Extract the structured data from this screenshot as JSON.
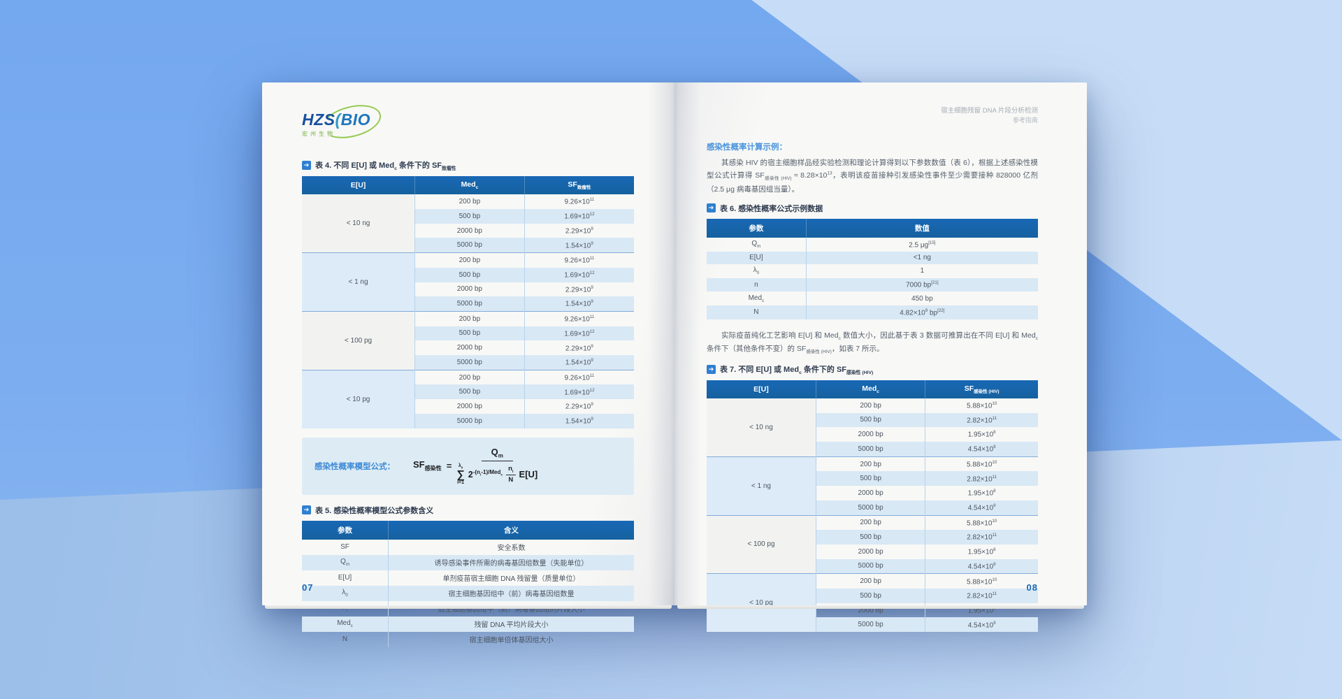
{
  "colors": {
    "base_blue": "#7cadf0",
    "wedge_blue": "#c7ddf7",
    "band_blue": "#b3cdf0",
    "header_blue": "#1968b5",
    "accent_blue": "#4a94dc",
    "row_blue": "#d8e8f5"
  },
  "left": {
    "logo": {
      "hzs": "HZS",
      "bracket": "(",
      "bio": "BIO",
      "subtext": "宏州生物"
    },
    "tag_glyph": "➔",
    "table4_title": "表 4. 不同 E[U] 或 Med_{c} 条件下的 SF_{致瘤性}",
    "table4": {
      "headers": [
        "E[U]",
        "Med_{c}",
        "SF_{致瘤性}"
      ],
      "widths": [
        "34%",
        "33%",
        "33%"
      ],
      "groups": [
        {
          "label": "< 10 ng",
          "rows": [
            [
              "200 bp",
              "9.26×10^{11}"
            ],
            [
              "500 bp",
              "1.69×10^{12}"
            ],
            [
              "2000 bp",
              "2.29×10^{9}"
            ],
            [
              "5000 bp",
              "1.54×10^{9}"
            ]
          ]
        },
        {
          "label": "< 1 ng",
          "rows": [
            [
              "200 bp",
              "9.26×10^{11}"
            ],
            [
              "500 bp",
              "1.69×10^{12}"
            ],
            [
              "2000 bp",
              "2.29×10^{9}"
            ],
            [
              "5000 bp",
              "1.54×10^{9}"
            ]
          ]
        },
        {
          "label": "< 100 pg",
          "rows": [
            [
              "200 bp",
              "9.26×10^{11}"
            ],
            [
              "500 bp",
              "1.69×10^{12}"
            ],
            [
              "2000 bp",
              "2.29×10^{9}"
            ],
            [
              "5000 bp",
              "1.54×10^{9}"
            ]
          ]
        },
        {
          "label": "< 10 pg",
          "rows": [
            [
              "200 bp",
              "9.26×10^{11}"
            ],
            [
              "500 bp",
              "1.69×10^{12}"
            ],
            [
              "2000 bp",
              "2.29×10^{9}"
            ],
            [
              "5000 bp",
              "1.54×10^{9}"
            ]
          ]
        }
      ]
    },
    "formula": {
      "label": "感染性概率模型公式：",
      "lhs": "SF_{感染性}",
      "equals": "=",
      "numerator": "Q_{m}",
      "sum_top": "λ_{0}",
      "sigma": "∑",
      "sum_bottom": "i=1",
      "pow_base": "2",
      "pow_exp": "-(n_{i}-1)/Med_{c}",
      "frac_num": "n_{i}",
      "frac_den": "N",
      "tail": "E[U]"
    },
    "table5_title": "表 5. 感染性概率模型公式参数含义",
    "table5": {
      "headers": [
        "参数",
        "含义"
      ],
      "widths": [
        "26%",
        "74%"
      ],
      "rows": [
        [
          "SF",
          "安全系数"
        ],
        [
          "Q_{m}",
          "诱导感染事件所需的病毒基因组数量（失能单位）"
        ],
        [
          "E[U]",
          "单剂疫苗宿主细胞 DNA 残留量（质量单位）"
        ],
        [
          "λ_{0}",
          "宿主细胞基因组中（前）病毒基因组数量"
        ],
        [
          "n_{i}",
          "宿主细胞基因组中（前）病毒基因组的片段大小"
        ],
        [
          "Med_{c}",
          "残留 DNA 平均片段大小"
        ],
        [
          "N",
          "宿主细胞单倍体基因组大小"
        ]
      ]
    },
    "page_number": "07"
  },
  "right": {
    "header_line1": "宿主细胞残留 DNA 片段分析检测",
    "header_line2": "参考指南",
    "section_heading": "感染性概率计算示例：",
    "para1": "其感染 HIV 的宿主细胞样品经实验检测和理论计算得到以下参数数值（表 6），根据上述感染性模型公式计算得 SF_{感染性 (HIV)} ≈ 8.28×10^{13}，表明该疫苗接种引发感染性事件至少需要接种 828000 亿剂（2.5 μg 病毒基因组当量）。",
    "table6_title": "表 6. 感染性概率公式示例数据",
    "table6": {
      "headers": [
        "参数",
        "数值"
      ],
      "widths": [
        "30%",
        "70%"
      ],
      "rows": [
        [
          "Q_{m}",
          "2.5 μg^{[15]}"
        ],
        [
          "E[U]",
          "<1 ng"
        ],
        [
          "λ_{0}",
          "1"
        ],
        [
          "n",
          "7000 bp^{[21]}"
        ],
        [
          "Med_{c}",
          "450 bp"
        ],
        [
          "N",
          "4.82×10^{9} bp^{[22]}"
        ]
      ]
    },
    "para2": "实际疫苗纯化工艺影响 E[U] 和 Med_{c} 数值大小，因此基于表 3 数据可推算出在不同 E[U] 和 Med_{c} 条件下（其他条件不变）的 SF_{感染性 (HIV)}，如表 7 所示。",
    "table7_title": "表 7. 不同 E[U] 或 Med_{c} 条件下的 SF_{感染性 (HIV)}",
    "table7": {
      "headers": [
        "E[U]",
        "Med_{c}",
        "SF_{感染性 (HIV)}"
      ],
      "widths": [
        "33%",
        "33%",
        "34%"
      ],
      "groups": [
        {
          "label": "< 10 ng",
          "rows": [
            [
              "200 bp",
              "5.88×10^{10}"
            ],
            [
              "500 bp",
              "2.82×10^{11}"
            ],
            [
              "2000 bp",
              "1.95×10^{8}"
            ],
            [
              "5000 bp",
              "4.54×10^{9}"
            ]
          ]
        },
        {
          "label": "< 1 ng",
          "rows": [
            [
              "200 bp",
              "5.88×10^{10}"
            ],
            [
              "500 bp",
              "2.82×10^{11}"
            ],
            [
              "2000 bp",
              "1.95×10^{8}"
            ],
            [
              "5000 bp",
              "4.54×10^{9}"
            ]
          ]
        },
        {
          "label": "< 100 pg",
          "rows": [
            [
              "200 bp",
              "5.88×10^{10}"
            ],
            [
              "500 bp",
              "2.82×10^{11}"
            ],
            [
              "2000 bp",
              "1.95×10^{8}"
            ],
            [
              "5000 bp",
              "4.54×10^{9}"
            ]
          ]
        },
        {
          "label": "< 10 pg",
          "rows": [
            [
              "200 bp",
              "5.88×10^{10}"
            ],
            [
              "500 bp",
              "2.82×10^{11}"
            ],
            [
              "2000 bp",
              "1.95×10^{8}"
            ],
            [
              "5000 bp",
              "4.54×10^{9}"
            ]
          ]
        }
      ]
    },
    "page_number": "08"
  }
}
